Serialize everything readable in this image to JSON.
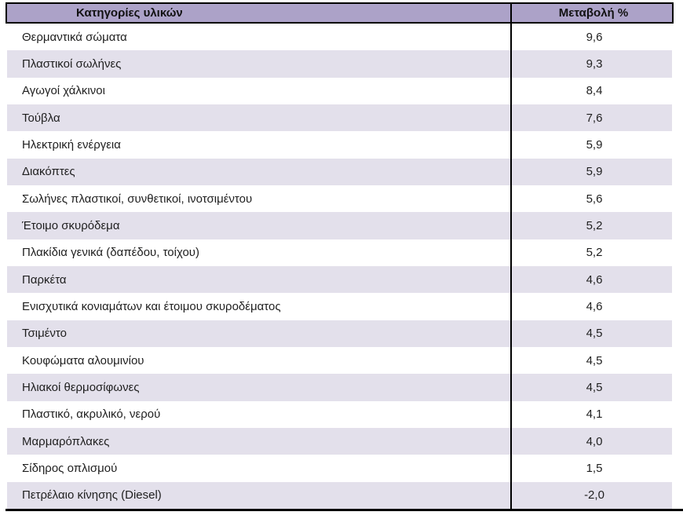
{
  "table": {
    "columns": [
      {
        "label": "Κατηγορίες υλικών"
      },
      {
        "label": "Μεταβολή %"
      }
    ],
    "rows": [
      {
        "category": "Θερμαντικά σώματα",
        "change": "9,6"
      },
      {
        "category": "Πλαστικοί σωλήνες",
        "change": "9,3"
      },
      {
        "category": "Αγωγοί χάλκινοι",
        "change": "8,4"
      },
      {
        "category": "Τούβλα",
        "change": "7,6"
      },
      {
        "category": "Ηλεκτρική ενέργεια",
        "change": "5,9"
      },
      {
        "category": "Διακόπτες",
        "change": "5,9"
      },
      {
        "category": "Σωλήνες πλαστικοί, συνθετικοί, ινοτσιμέντου",
        "change": "5,6"
      },
      {
        "category": "Έτοιμο σκυρόδεμα",
        "change": "5,2"
      },
      {
        "category": "Πλακίδια γενικά (δαπέδου, τοίχου)",
        "change": "5,2"
      },
      {
        "category": "Παρκέτα",
        "change": "4,6"
      },
      {
        "category": "Ενισχυτικά κονιαμάτων και έτοιμου σκυροδέματος",
        "change": "4,6"
      },
      {
        "category": "Τσιμέντο",
        "change": "4,5"
      },
      {
        "category": "Κουφώματα αλουμινίου",
        "change": "4,5"
      },
      {
        "category": "Ηλιακοί θερμοσίφωνες",
        "change": "4,5"
      },
      {
        "category": "Πλαστικό, ακρυλικό, νερού",
        "change": "4,1"
      },
      {
        "category": "Μαρμαρόπλακες",
        "change": "4,0"
      },
      {
        "category": "Σίδηρος οπλισμού",
        "change": "1,5"
      },
      {
        "category": "Πετρέλαιο κίνησης (Diesel)",
        "change": "-2,0"
      }
    ]
  },
  "colors": {
    "header_bg": "#aca2c8",
    "alt_row_bg": "#e3e0eb",
    "border": "#000000",
    "text": "#1f1f1f"
  }
}
